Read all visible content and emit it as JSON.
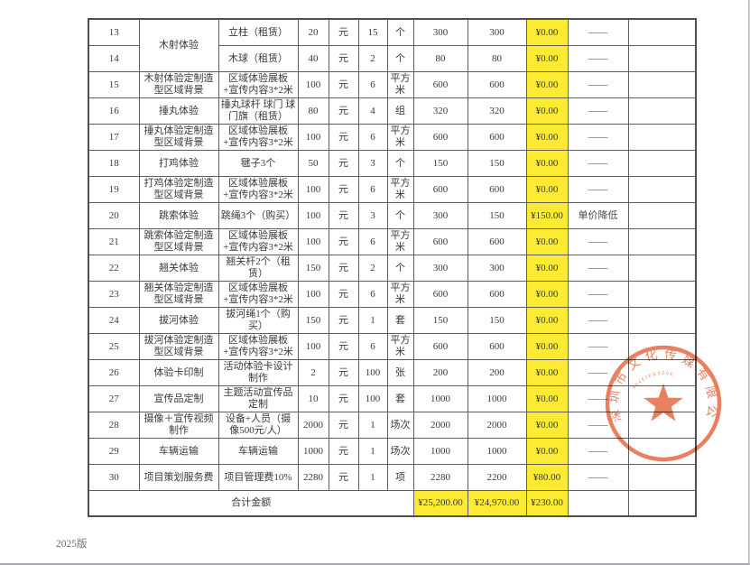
{
  "page": {
    "version_label": "2025版"
  },
  "colors": {
    "highlight": "#fdeb33",
    "seal": "#e66a43",
    "border": "#5e5e5e"
  },
  "table": {
    "total_label": "合计金额",
    "totals": {
      "amount_budget": "¥25,200.00",
      "amount_final": "¥24,970.00",
      "diff": "¥230.00"
    },
    "rows": [
      {
        "no": "13",
        "name": "木射体验",
        "name_rowspan": 2,
        "desc": "立柱（租赁）",
        "unit_price": "20",
        "currency": "元",
        "qty": "15",
        "unit": "个",
        "amount_budget": "300",
        "amount_final": "300",
        "diff": "¥0.00",
        "note": "——"
      },
      {
        "no": "14",
        "name": null,
        "desc": "木球（租赁）",
        "unit_price": "40",
        "currency": "元",
        "qty": "2",
        "unit": "个",
        "amount_budget": "80",
        "amount_final": "80",
        "diff": "¥0.00",
        "note": "——"
      },
      {
        "no": "15",
        "name": "木射体验定制造型区域背景",
        "desc": "区域体验展板+宣传内容3*2米",
        "unit_price": "100",
        "currency": "元",
        "qty": "6",
        "unit": "平方米",
        "amount_budget": "600",
        "amount_final": "600",
        "diff": "¥0.00",
        "note": "——"
      },
      {
        "no": "16",
        "name": "捶丸体验",
        "desc": "捶丸球杆 球门 球门旗（租赁）",
        "unit_price": "80",
        "currency": "元",
        "qty": "4",
        "unit": "组",
        "amount_budget": "320",
        "amount_final": "320",
        "diff": "¥0.00",
        "note": "——"
      },
      {
        "no": "17",
        "name": "捶丸体验定制造型区域背景",
        "desc": "区域体验展板+宣传内容3*2米",
        "unit_price": "100",
        "currency": "元",
        "qty": "6",
        "unit": "平方米",
        "amount_budget": "600",
        "amount_final": "600",
        "diff": "¥0.00",
        "note": "——"
      },
      {
        "no": "18",
        "name": "打鸡体验",
        "desc": "毽子3个",
        "unit_price": "50",
        "currency": "元",
        "qty": "3",
        "unit": "个",
        "amount_budget": "150",
        "amount_final": "150",
        "diff": "¥0.00",
        "note": "——"
      },
      {
        "no": "19",
        "name": "打鸡体验定制造型区域背景",
        "desc": "区域体验展板+宣传内容3*2米",
        "unit_price": "100",
        "currency": "元",
        "qty": "6",
        "unit": "平方米",
        "amount_budget": "600",
        "amount_final": "600",
        "diff": "¥0.00",
        "note": "——"
      },
      {
        "no": "20",
        "name": "跳索体验",
        "desc": "跳绳3个（购买）",
        "unit_price": "100",
        "currency": "元",
        "qty": "3",
        "unit": "个",
        "amount_budget": "300",
        "amount_final": "150",
        "diff": "¥150.00",
        "note": "单价降低"
      },
      {
        "no": "21",
        "name": "跳索体验定制造型区域背景",
        "desc": "区域体验展板+宣传内容3*2米",
        "unit_price": "100",
        "currency": "元",
        "qty": "6",
        "unit": "平方米",
        "amount_budget": "600",
        "amount_final": "600",
        "diff": "¥0.00",
        "note": "——"
      },
      {
        "no": "22",
        "name": "翘关体验",
        "desc": "翘关杆2个（租赁）",
        "unit_price": "150",
        "currency": "元",
        "qty": "2",
        "unit": "个",
        "amount_budget": "300",
        "amount_final": "300",
        "diff": "¥0.00",
        "note": "——"
      },
      {
        "no": "23",
        "name": "翘关体验定制造型区域背景",
        "desc": "区域体验展板+宣传内容3*2米",
        "unit_price": "100",
        "currency": "元",
        "qty": "6",
        "unit": "平方米",
        "amount_budget": "600",
        "amount_final": "600",
        "diff": "¥0.00",
        "note": "——"
      },
      {
        "no": "24",
        "name": "拔河体验",
        "desc": "拔河绳1个（购买）",
        "unit_price": "150",
        "currency": "元",
        "qty": "1",
        "unit": "套",
        "amount_budget": "150",
        "amount_final": "150",
        "diff": "¥0.00",
        "note": "——"
      },
      {
        "no": "25",
        "name": "拔河体验定制造型区域背景",
        "desc": "区域体验展板+宣传内容3*2米",
        "unit_price": "100",
        "currency": "元",
        "qty": "6",
        "unit": "平方米",
        "amount_budget": "600",
        "amount_final": "600",
        "diff": "¥0.00",
        "note": "——"
      },
      {
        "no": "26",
        "name": "体验卡印制",
        "desc": "活动体验卡设计制作",
        "unit_price": "2",
        "currency": "元",
        "qty": "100",
        "unit": "张",
        "amount_budget": "200",
        "amount_final": "200",
        "diff": "¥0.00",
        "note": "——"
      },
      {
        "no": "27",
        "name": "宣传品定制",
        "desc": "主题活动宣传品定制",
        "unit_price": "10",
        "currency": "元",
        "qty": "100",
        "unit": "套",
        "amount_budget": "1000",
        "amount_final": "1000",
        "diff": "¥0.00",
        "note": "——"
      },
      {
        "no": "28",
        "name": "摄像＋宣传视频制作",
        "desc": "设备+人员（摄像500元/人）",
        "unit_price": "2000",
        "currency": "元",
        "qty": "1",
        "unit": "场次",
        "amount_budget": "2000",
        "amount_final": "2000",
        "diff": "¥0.00",
        "note": "——"
      },
      {
        "no": "29",
        "name": "车辆运输",
        "desc": "车辆运输",
        "unit_price": "1000",
        "currency": "元",
        "qty": "1",
        "unit": "场次",
        "amount_budget": "1000",
        "amount_final": "1000",
        "diff": "¥0.00",
        "note": "——"
      },
      {
        "no": "30",
        "name": "项目策划服务费",
        "desc": "项目管理费10%",
        "unit_price": "2280",
        "currency": "元",
        "qty": "1",
        "unit": "项",
        "amount_budget": "2280",
        "amount_final": "2200",
        "diff": "¥80.00",
        "note": "——"
      }
    ]
  },
  "seal": {
    "company_text": "深圳市文化传媒有限公司",
    "serial": "904EIFK0Z0E"
  }
}
